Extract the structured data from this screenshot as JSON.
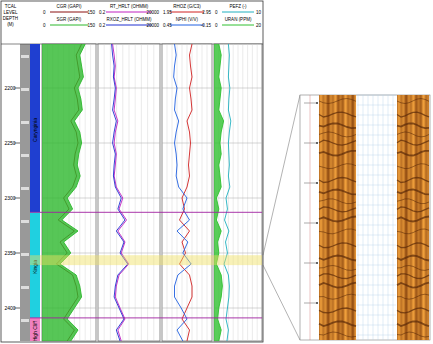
{
  "chart_data": {
    "type": "well_log",
    "depth_label": "TCAL LEVEL DEPTH (M)",
    "ylim": [
      2160,
      2430
    ],
    "yticks": [
      2200,
      2250,
      2300,
      2350,
      2400
    ],
    "grid": true,
    "depth": [
      2160,
      2170,
      2180,
      2190,
      2200,
      2210,
      2220,
      2230,
      2240,
      2250,
      2260,
      2270,
      2280,
      2290,
      2300,
      2310,
      2320,
      2330,
      2340,
      2350,
      2360,
      2370,
      2380,
      2390,
      2400,
      2410,
      2420,
      2430
    ],
    "tracks": [
      {
        "series": [
          {
            "name": "CGR (GAPI)",
            "color": "#8b1010",
            "xlim": [
              0,
              150
            ],
            "values": [
              110,
              95,
              100,
              105,
              90,
              98,
              102,
              80,
              95,
              100,
              92,
              88,
              96,
              85,
              60,
              75,
              45,
              90,
              50,
              70,
              40,
              85,
              95,
              100,
              80,
              60,
              90,
              70
            ]
          },
          {
            "name": "SGR (GAPI)",
            "color": "#2db82d",
            "xlim": [
              0,
              150
            ],
            "type": "area",
            "values": [
              120,
              105,
              110,
              115,
              100,
              108,
              112,
              90,
              105,
              110,
              102,
              98,
              106,
              95,
              70,
              85,
              55,
              100,
              60,
              80,
              50,
              95,
              105,
              110,
              90,
              70,
              100,
              80
            ]
          }
        ]
      },
      {
        "series": [
          {
            "name": "RT_HRLT (OHMM)",
            "color": "#c020c0",
            "xlim": [
              0.2,
              20000
            ],
            "log": true,
            "values": [
              3,
              4,
              5,
              4,
              6,
              5,
              4,
              8,
              5,
              4,
              6,
              5,
              4,
              6,
              20,
              10,
              40,
              8,
              30,
              15,
              60,
              10,
              6,
              5,
              12,
              30,
              8,
              15
            ]
          },
          {
            "name": "RXOZ_HRLT (OHMM)",
            "color": "#2030d0",
            "xlim": [
              0.2,
              20000
            ],
            "log": true,
            "values": [
              2.5,
              3,
              4,
              3.5,
              5,
              4,
              3,
              6,
              4,
              3,
              5,
              4,
              3.5,
              5,
              15,
              8,
              30,
              6,
              25,
              12,
              50,
              8,
              5,
              4,
              10,
              25,
              6,
              12
            ]
          }
        ]
      },
      {
        "series": [
          {
            "name": "RHOZ (G/C3)",
            "color": "#d02020",
            "xlim": [
              1.95,
              2.95
            ],
            "values": [
              2.55,
              2.5,
              2.52,
              2.55,
              2.5,
              2.53,
              2.55,
              2.45,
              2.5,
              2.52,
              2.5,
              2.48,
              2.5,
              2.45,
              2.35,
              2.4,
              2.3,
              2.5,
              2.35,
              2.42,
              2.3,
              2.5,
              2.55,
              2.55,
              2.45,
              2.35,
              2.5,
              2.45
            ]
          },
          {
            "name": "NPHI (V/V)",
            "color": "#2060e0",
            "xlim": [
              0.45,
              -0.15
            ],
            "values": [
              0.3,
              0.28,
              0.3,
              0.31,
              0.27,
              0.29,
              0.3,
              0.25,
              0.28,
              0.3,
              0.28,
              0.27,
              0.28,
              0.25,
              0.15,
              0.2,
              0.12,
              0.27,
              0.14,
              0.2,
              0.1,
              0.26,
              0.3,
              0.3,
              0.22,
              0.15,
              0.27,
              0.2
            ]
          }
        ]
      },
      {
        "series": [
          {
            "name": "PEFZ (-)",
            "color": "#20b0c0",
            "xlim": [
              0,
              10
            ],
            "values": [
              3,
              3.2,
              3.1,
              3,
              3.3,
              3.1,
              3,
              3.5,
              3.2,
              3,
              3.1,
              3.2,
              3,
              3.3,
              2.5,
              2.8,
              2.2,
              3.1,
              2.4,
              2.8,
              2.1,
              3,
              3.2,
              3.1,
              2.8,
              2.5,
              3,
              2.7
            ]
          },
          {
            "name": "URAN (PPM)",
            "color": "#30c030",
            "xlim": [
              0,
              20
            ],
            "type": "area",
            "values": [
              2,
              3,
              2.5,
              2,
              3,
              2.5,
              2,
              4,
              3,
              2.5,
              3,
              2,
              2.5,
              3,
              1,
              2,
              1,
              3,
              1.5,
              2,
              1,
              3,
              3.5,
              3,
              2,
              1.5,
              3,
              2
            ]
          }
        ]
      }
    ],
    "zones": [
      {
        "name": "Carynginia",
        "top": 2160,
        "base": 2313,
        "color": "#1f3fd0"
      },
      {
        "name": "Kingia",
        "top": 2313,
        "base": 2409,
        "color": "#20d0e0"
      },
      {
        "name": "High Cliff",
        "top": 2409,
        "base": 2430,
        "color": "#f080c0"
      }
    ],
    "highlight": [
      2352,
      2361
    ]
  }
}
